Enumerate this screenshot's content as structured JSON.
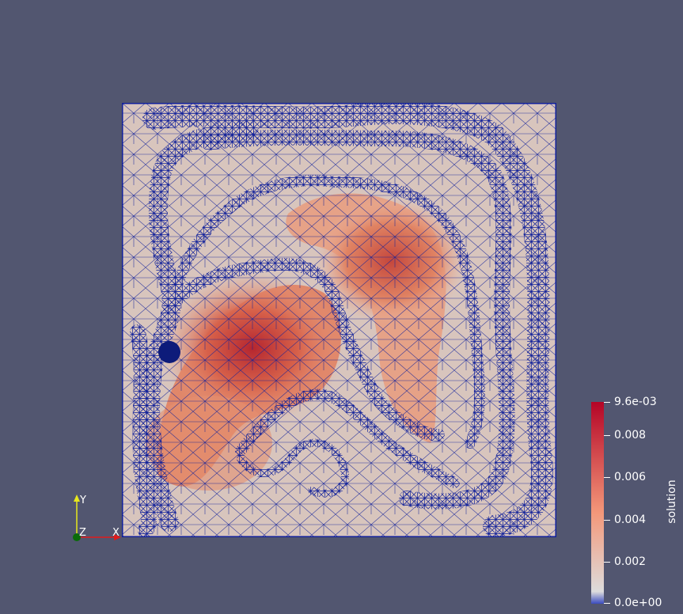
{
  "viewer": {
    "background": "#525670",
    "mesh_edge_color": "#10209a"
  },
  "colorbar": {
    "title": "solution",
    "max_label": "9.6e-03",
    "min_label": "0.0e+00",
    "tick_labels": [
      "0.008",
      "0.006",
      "0.004",
      "0.002"
    ],
    "range": [
      0.0,
      0.0096
    ],
    "colors": [
      "#3b4cc0",
      "#dddcdc",
      "#f4987a",
      "#b40426"
    ]
  },
  "axes": {
    "x_label": "X",
    "y_label": "Y",
    "z_label": "Z",
    "x_color": "#e01c1c",
    "y_color": "#e8e81c",
    "z_color": "#0a6b0a"
  }
}
